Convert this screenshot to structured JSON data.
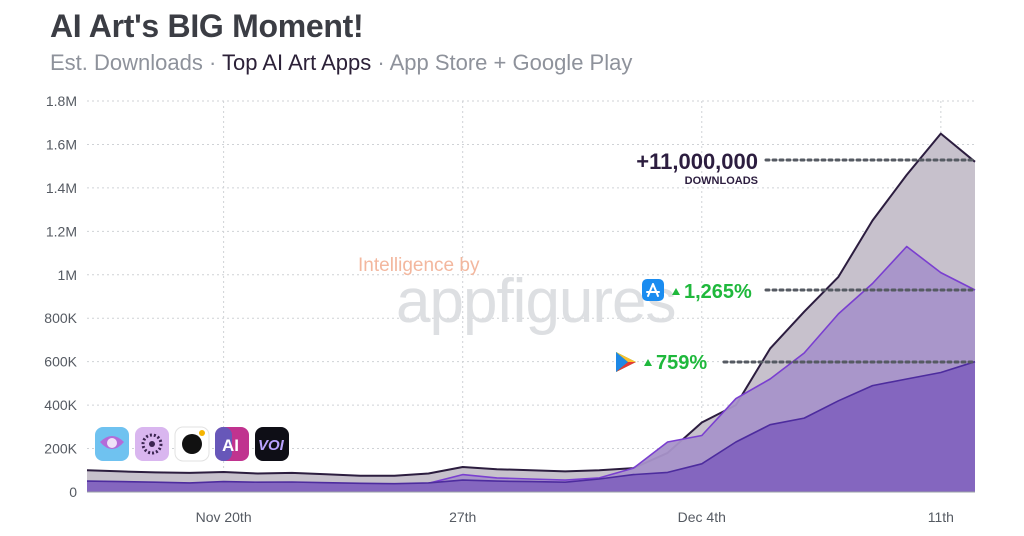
{
  "title": "AI Art's BIG Moment!",
  "subtitle": {
    "part1": "Est. Downloads · ",
    "part2": "Top AI Art Apps",
    "part3": " · App Store + Google Play"
  },
  "watermark": {
    "top": "Intelligence by",
    "main": "appfigures"
  },
  "icons": [
    "lensa-icon",
    "starryai-icon",
    "dawn-icon",
    "ai-art-icon",
    "voi-icon"
  ],
  "colors": {
    "total_fill": "#c7c1cc",
    "total_line": "#2c1d3f",
    "appstore_fill": "#a894c9",
    "appstore_line": "#7a3fd0",
    "googleplay_fill": "#8466bf",
    "googleplay_line": "#4d2c9e",
    "pct_green": "#1fb83c",
    "appstore_blue": "#1a8cf0"
  },
  "annotations": {
    "total_value": "+11,000,000",
    "total_label": "DOWNLOADS",
    "appstore_pct": "1,265%",
    "googleplay_pct": "759%"
  },
  "chart_data": {
    "type": "area",
    "title": "",
    "xlabel": "",
    "ylabel": "",
    "ylim": [
      0,
      1800000
    ],
    "yticks": [
      0,
      200000,
      400000,
      600000,
      800000,
      1000000,
      1200000,
      1400000,
      1600000,
      1800000
    ],
    "ytick_labels": [
      "0",
      "200K",
      "400K",
      "600K",
      "800K",
      "1M",
      "1.2M",
      "1.4M",
      "1.6M",
      "1.8M"
    ],
    "x": [
      "2022-11-16",
      "2022-11-17",
      "2022-11-18",
      "2022-11-19",
      "2022-11-20",
      "2022-11-21",
      "2022-11-22",
      "2022-11-23",
      "2022-11-24",
      "2022-11-25",
      "2022-11-26",
      "2022-11-27",
      "2022-11-28",
      "2022-11-29",
      "2022-11-30",
      "2022-12-01",
      "2022-12-02",
      "2022-12-03",
      "2022-12-04",
      "2022-12-05",
      "2022-12-06",
      "2022-12-07",
      "2022-12-08",
      "2022-12-09",
      "2022-12-10",
      "2022-12-11",
      "2022-12-12"
    ],
    "xticks": [
      "2022-11-20",
      "2022-11-27",
      "2022-12-04",
      "2022-12-11"
    ],
    "xtick_labels": [
      "Nov 20th",
      "27th",
      "Dec 4th",
      "11th"
    ],
    "grid": true,
    "legend": "none",
    "series": [
      {
        "values": [
          100000,
          95000,
          90000,
          88000,
          92000,
          85000,
          88000,
          82000,
          75000,
          75000,
          85000,
          115000,
          105000,
          100000,
          95000,
          100000,
          110000,
          180000,
          320000,
          400000,
          660000,
          830000,
          990000,
          1250000,
          1460000,
          1650000,
          1520000
        ]
      },
      {
        "values": [
          40000,
          38000,
          35000,
          32000,
          38000,
          35000,
          36000,
          33000,
          32000,
          35000,
          40000,
          80000,
          65000,
          60000,
          55000,
          65000,
          110000,
          230000,
          260000,
          430000,
          520000,
          640000,
          820000,
          960000,
          1130000,
          1010000,
          930000
        ]
      },
      {
        "values": [
          50000,
          48000,
          45000,
          42000,
          48000,
          45000,
          46000,
          43000,
          40000,
          38000,
          42000,
          55000,
          50000,
          48000,
          45000,
          60000,
          80000,
          90000,
          130000,
          230000,
          310000,
          340000,
          420000,
          490000,
          520000,
          550000,
          600000
        ]
      }
    ]
  }
}
